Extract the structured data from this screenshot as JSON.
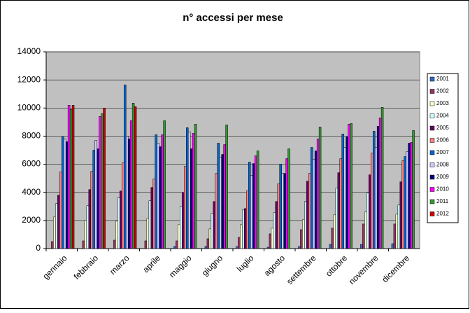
{
  "chart_data": {
    "type": "bar",
    "title": "n° accessi per mese",
    "categories": [
      "gennaio",
      "febbraio",
      "marzo",
      "aprile",
      "maggio",
      "giugno",
      "luglio",
      "agosto",
      "settembre",
      "ottobre",
      "novembre",
      "dicembre"
    ],
    "series": [
      {
        "name": "2001",
        "color": "#3366cc",
        "values": [
          0,
          0,
          0,
          0,
          150,
          150,
          150,
          100,
          150,
          300,
          300,
          350
        ]
      },
      {
        "name": "2002",
        "color": "#993366",
        "values": [
          500,
          550,
          600,
          550,
          550,
          700,
          800,
          1050,
          1350,
          1450,
          1750,
          1750
        ]
      },
      {
        "name": "2003",
        "color": "#ffffcc",
        "values": [
          2250,
          2000,
          1950,
          2150,
          1700,
          1400,
          1700,
          1450,
          2050,
          2400,
          2600,
          2450
        ]
      },
      {
        "name": "2004",
        "color": "#ccffff",
        "values": [
          3200,
          3050,
          3600,
          3400,
          3000,
          2500,
          2750,
          2550,
          3350,
          4300,
          3950,
          3100
        ]
      },
      {
        "name": "2005",
        "color": "#660066",
        "values": [
          3800,
          4200,
          4100,
          4350,
          4000,
          3350,
          2850,
          3350,
          4800,
          5400,
          5250,
          4750
        ]
      },
      {
        "name": "2006",
        "color": "#ff8080",
        "values": [
          5450,
          5500,
          6100,
          4950,
          5850,
          5350,
          4100,
          4600,
          5350,
          6400,
          6800,
          6250
        ]
      },
      {
        "name": "2007",
        "color": "#0066cc",
        "values": [
          7950,
          7000,
          11650,
          8100,
          8600,
          7500,
          6150,
          6000,
          7200,
          8150,
          8350,
          6550
        ]
      },
      {
        "name": "2008",
        "color": "#ccccff",
        "values": [
          7800,
          7700,
          8000,
          7500,
          8300,
          6500,
          5200,
          5350,
          6350,
          7200,
          7200,
          6900
        ]
      },
      {
        "name": "2009",
        "color": "#000080",
        "values": [
          7600,
          7100,
          7800,
          7250,
          7100,
          6700,
          6050,
          5350,
          6950,
          7950,
          8700,
          7500
        ]
      },
      {
        "name": "2010",
        "color": "#ff00ff",
        "values": [
          10200,
          9400,
          9100,
          8100,
          8200,
          7400,
          6600,
          6400,
          7800,
          8850,
          9300,
          7550
        ]
      },
      {
        "name": "2011",
        "color": "#339933",
        "values": [
          9900,
          9600,
          10350,
          9100,
          8850,
          8800,
          6950,
          7100,
          8650,
          8900,
          10050,
          8400
        ]
      },
      {
        "name": "2012",
        "color": "#cc0000",
        "values": [
          10200,
          10000,
          10100,
          null,
          null,
          null,
          null,
          null,
          null,
          null,
          null,
          null
        ]
      }
    ],
    "ylim": [
      0,
      14000
    ],
    "yticks": [
      0,
      2000,
      4000,
      6000,
      8000,
      10000,
      12000,
      14000
    ],
    "grid": true,
    "legend": "right"
  }
}
